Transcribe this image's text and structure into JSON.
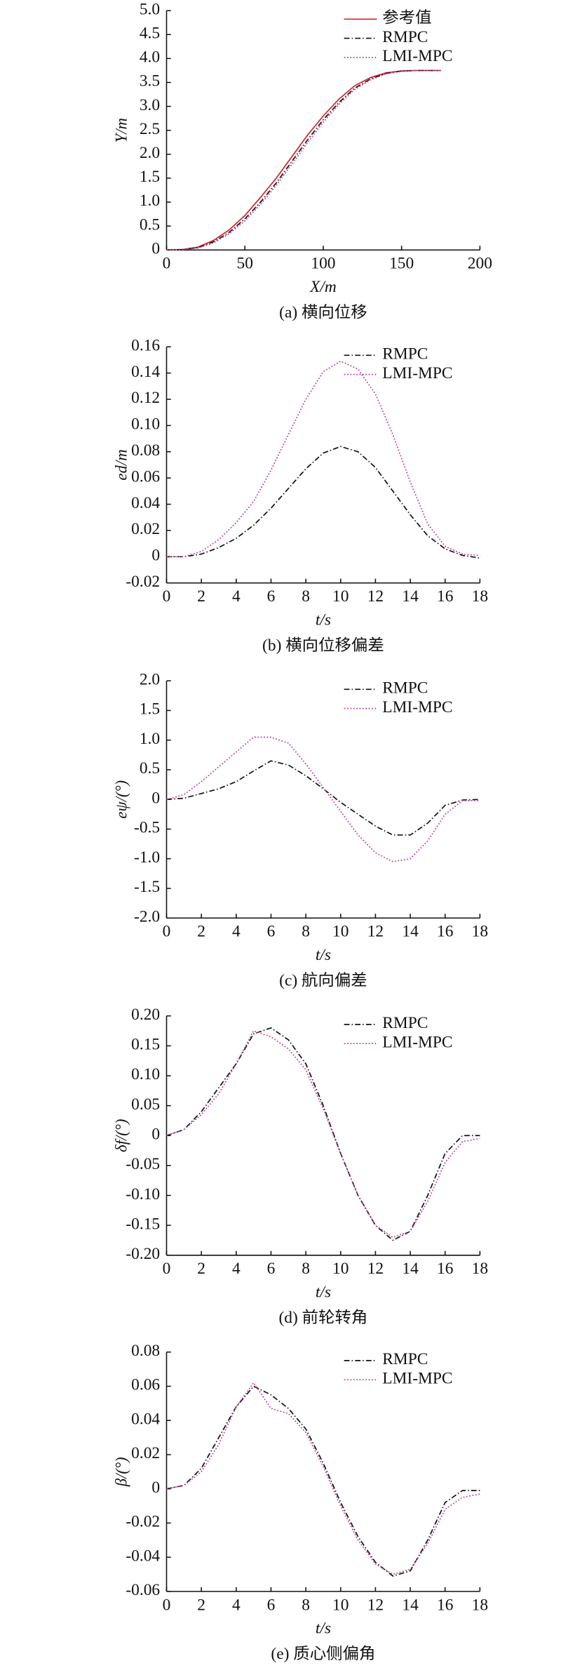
{
  "chart_data": [
    {
      "type": "line",
      "xlabel": "X/m",
      "ylabel": "Y/m",
      "caption": "(a) 横向位移",
      "x": [
        0,
        10,
        20,
        30,
        40,
        50,
        60,
        70,
        80,
        90,
        100,
        110,
        120,
        130,
        140,
        150,
        160,
        175
      ],
      "xlim": [
        0,
        200
      ],
      "xticks": [
        0,
        50,
        100,
        150,
        200
      ],
      "ylim": [
        0,
        5
      ],
      "yticks": [
        0,
        {
          "value": 0.5,
          "label": "0.5"
        },
        {
          "value": 1,
          "label": "1.0"
        },
        {
          "value": 1.5,
          "label": "1.5"
        },
        {
          "value": 2,
          "label": "2.0"
        },
        {
          "value": 2.5,
          "label": "2.5"
        },
        {
          "value": 3,
          "label": "3.0"
        },
        {
          "value": 3.5,
          "label": "3.5"
        },
        {
          "value": 4,
          "label": "4.0"
        },
        {
          "value": 4.5,
          "label": "4.5"
        },
        {
          "value": 5,
          "label": "5.0"
        }
      ],
      "legend": "upper right",
      "series": [
        {
          "name": "参考值",
          "color": "#d6202a",
          "style": "solid",
          "values": [
            0,
            0.01,
            0.06,
            0.2,
            0.42,
            0.72,
            1.1,
            1.5,
            1.95,
            2.4,
            2.8,
            3.15,
            3.43,
            3.6,
            3.7,
            3.74,
            3.75,
            3.75
          ]
        },
        {
          "name": "RMPC",
          "color": "#111111",
          "style": "dashdot",
          "values": [
            0,
            0.01,
            0.05,
            0.17,
            0.37,
            0.65,
            1.0,
            1.4,
            1.85,
            2.3,
            2.72,
            3.08,
            3.38,
            3.57,
            3.69,
            3.74,
            3.75,
            3.75
          ]
        },
        {
          "name": "LMI-MPC",
          "color": "#c2409e",
          "style": "dotted",
          "values": [
            0,
            0.01,
            0.04,
            0.15,
            0.34,
            0.61,
            0.95,
            1.35,
            1.79,
            2.24,
            2.67,
            3.04,
            3.35,
            3.55,
            3.68,
            3.73,
            3.75,
            3.75
          ]
        }
      ]
    },
    {
      "type": "line",
      "xlabel": "t/s",
      "ylabel": "ed/m",
      "caption": "(b) 横向位移偏差",
      "x": [
        0,
        1,
        2,
        3,
        4,
        5,
        6,
        7,
        8,
        9,
        10,
        11,
        12,
        13,
        14,
        15,
        16,
        17,
        18
      ],
      "xlim": [
        0,
        18
      ],
      "xticks": [
        0,
        2,
        4,
        6,
        8,
        10,
        12,
        14,
        16,
        18
      ],
      "ylim": [
        -0.02,
        0.16
      ],
      "yticks": [
        -0.02,
        0,
        0.02,
        0.04,
        0.06,
        0.08,
        {
          "value": 0.1,
          "label": "0.10"
        },
        0.12,
        0.14,
        0.16
      ],
      "legend": "upper right",
      "series": [
        {
          "name": "RMPC",
          "color": "#111111",
          "style": "dashdot",
          "values": [
            0,
            0,
            0.002,
            0.007,
            0.014,
            0.024,
            0.037,
            0.052,
            0.067,
            0.079,
            0.084,
            0.08,
            0.068,
            0.05,
            0.032,
            0.016,
            0.006,
            0.001,
            -0.001
          ]
        },
        {
          "name": "LMI-MPC",
          "color": "#c2409e",
          "style": "dotted",
          "values": [
            0,
            0,
            0.004,
            0.013,
            0.026,
            0.042,
            0.066,
            0.093,
            0.12,
            0.141,
            0.149,
            0.143,
            0.124,
            0.093,
            0.057,
            0.025,
            0.008,
            0.002,
            0.001
          ]
        }
      ]
    },
    {
      "type": "line",
      "xlabel": "t/s",
      "ylabel": "eψ/(°)",
      "caption": "(c) 航向偏差",
      "x": [
        0,
        1,
        2,
        3,
        4,
        5,
        6,
        7,
        8,
        9,
        10,
        11,
        12,
        13,
        14,
        15,
        16,
        17,
        18
      ],
      "xlim": [
        0,
        18
      ],
      "xticks": [
        0,
        2,
        4,
        6,
        8,
        10,
        12,
        14,
        16,
        18
      ],
      "ylim": [
        -2,
        2
      ],
      "yticks": [
        {
          "value": -2,
          "label": "-2.0"
        },
        {
          "value": -1.5,
          "label": "-1.5"
        },
        {
          "value": -1,
          "label": "-1.0"
        },
        {
          "value": -0.5,
          "label": "-0.5"
        },
        0,
        {
          "value": 0.5,
          "label": "0.5"
        },
        {
          "value": 1,
          "label": "1.0"
        },
        {
          "value": 1.5,
          "label": "1.5"
        },
        {
          "value": 2,
          "label": "2.0"
        }
      ],
      "legend": "upper right",
      "series": [
        {
          "name": "RMPC",
          "color": "#111111",
          "style": "dashdot",
          "values": [
            0,
            0.02,
            0.1,
            0.18,
            0.3,
            0.48,
            0.65,
            0.58,
            0.4,
            0.18,
            -0.05,
            -0.25,
            -0.45,
            -0.6,
            -0.6,
            -0.4,
            -0.1,
            -0.01,
            0
          ]
        },
        {
          "name": "LMI-MPC",
          "color": "#c2409e",
          "style": "dotted",
          "values": [
            0,
            0.08,
            0.3,
            0.55,
            0.8,
            1.05,
            1.05,
            0.95,
            0.6,
            0.2,
            -0.2,
            -0.6,
            -0.9,
            -1.05,
            -1.0,
            -0.7,
            -0.25,
            -0.02,
            -0.02
          ]
        }
      ]
    },
    {
      "type": "line",
      "xlabel": "t/s",
      "ylabel": "δf/(°)",
      "caption": "(d) 前轮转角",
      "x": [
        0,
        1,
        2,
        3,
        4,
        5,
        6,
        7,
        8,
        9,
        10,
        11,
        12,
        13,
        14,
        15,
        16,
        17,
        18
      ],
      "xlim": [
        0,
        18
      ],
      "xticks": [
        0,
        2,
        4,
        6,
        8,
        10,
        12,
        14,
        16,
        18
      ],
      "ylim": [
        -0.2,
        0.2
      ],
      "yticks": [
        {
          "value": -0.2,
          "label": "-0.20"
        },
        -0.15,
        {
          "value": -0.1,
          "label": "-0.10"
        },
        -0.05,
        0,
        0.05,
        {
          "value": 0.1,
          "label": "0.10"
        },
        0.15,
        {
          "value": 0.2,
          "label": "0.20"
        }
      ],
      "legend": "upper right",
      "series": [
        {
          "name": "RMPC",
          "color": "#111111",
          "style": "dashdot",
          "values": [
            0,
            0.01,
            0.04,
            0.08,
            0.12,
            0.17,
            0.18,
            0.16,
            0.12,
            0.05,
            -0.03,
            -0.1,
            -0.15,
            -0.175,
            -0.16,
            -0.1,
            -0.03,
            0,
            0
          ]
        },
        {
          "name": "LMI-MPC",
          "color": "#c2409e",
          "style": "dotted",
          "values": [
            0,
            0.01,
            0.035,
            0.07,
            0.12,
            0.175,
            0.165,
            0.145,
            0.11,
            0.045,
            -0.03,
            -0.1,
            -0.15,
            -0.17,
            -0.16,
            -0.11,
            -0.045,
            -0.01,
            -0.005
          ]
        }
      ]
    },
    {
      "type": "line",
      "xlabel": "t/s",
      "ylabel": "β/(°)",
      "caption": "(e) 质心侧偏角",
      "x": [
        0,
        1,
        2,
        3,
        4,
        5,
        6,
        7,
        8,
        9,
        10,
        11,
        12,
        13,
        14,
        15,
        16,
        17,
        18
      ],
      "xlim": [
        0,
        18
      ],
      "xticks": [
        0,
        2,
        4,
        6,
        8,
        10,
        12,
        14,
        16,
        18
      ],
      "ylim": [
        -0.06,
        0.08
      ],
      "yticks": [
        -0.06,
        -0.04,
        -0.02,
        0,
        0.02,
        0.04,
        0.06,
        0.08
      ],
      "legend": "upper right",
      "series": [
        {
          "name": "RMPC",
          "color": "#111111",
          "style": "dashdot",
          "values": [
            0,
            0.002,
            0.012,
            0.03,
            0.048,
            0.06,
            0.055,
            0.047,
            0.035,
            0.015,
            -0.008,
            -0.028,
            -0.043,
            -0.051,
            -0.048,
            -0.03,
            -0.008,
            -0.001,
            -0.001
          ]
        },
        {
          "name": "LMI-MPC",
          "color": "#c2409e",
          "style": "dotted",
          "values": [
            0,
            0.002,
            0.01,
            0.026,
            0.048,
            0.062,
            0.047,
            0.044,
            0.033,
            0.013,
            -0.01,
            -0.03,
            -0.044,
            -0.05,
            -0.047,
            -0.032,
            -0.012,
            -0.005,
            -0.003
          ]
        }
      ]
    }
  ]
}
